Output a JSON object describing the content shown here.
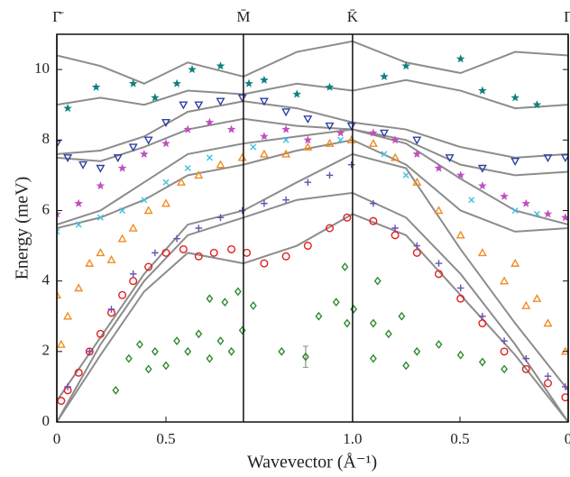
{
  "chart_data": {
    "type": "scatter",
    "xlabel": "Wavevector (Å⁻¹)",
    "ylabel": "Energy (meV)",
    "xlim": [
      0,
      2.343
    ],
    "ylim": [
      0,
      11
    ],
    "xticks": [
      0,
      0.5,
      {
        "value": 1.355,
        "label": "1.0"
      },
      {
        "value": 1.847,
        "label": "0.5"
      },
      {
        "value": 2.343,
        "label": "0"
      }
    ],
    "yticks": [
      0,
      2,
      4,
      6,
      8,
      10
    ],
    "symmetry_points": [
      {
        "x": 0,
        "label": "Γ̄"
      },
      {
        "x": 0.855,
        "label": "M̄"
      },
      {
        "x": 1.355,
        "label": "K̄"
      },
      {
        "x": 2.343,
        "label": "Γ̄"
      }
    ],
    "curve_color": "#8c8c8c",
    "curve_x": [
      0,
      0.2,
      0.4,
      0.6,
      0.855,
      1.1,
      1.355,
      1.6,
      1.85,
      2.1,
      2.343
    ],
    "curves": [
      [
        0,
        1.9,
        3.7,
        4.8,
        4.5,
        5.0,
        5.9,
        5.3,
        3.6,
        1.9,
        0
      ],
      [
        0,
        2.2,
        4.0,
        5.3,
        5.8,
        6.3,
        6.5,
        5.8,
        4.2,
        2.2,
        0
      ],
      [
        0.6,
        2.4,
        4.2,
        5.6,
        6.0,
        6.8,
        7.6,
        7.2,
        4.9,
        2.8,
        0.9
      ],
      [
        5.5,
        5.8,
        6.3,
        7.0,
        7.3,
        7.7,
        8.0,
        7.3,
        6.0,
        5.4,
        5.5
      ],
      [
        5.6,
        6.0,
        6.8,
        7.6,
        7.9,
        8.1,
        8.3,
        7.9,
        6.9,
        6.0,
        5.6
      ],
      [
        7.5,
        7.4,
        7.8,
        8.3,
        8.6,
        8.4,
        8.3,
        8.0,
        7.3,
        7.0,
        7.1
      ],
      [
        7.6,
        7.7,
        8.1,
        8.8,
        9.1,
        8.9,
        8.5,
        8.3,
        7.8,
        7.5,
        7.6
      ],
      [
        9.0,
        9.2,
        9.0,
        9.4,
        9.3,
        9.6,
        9.4,
        9.7,
        9.4,
        8.9,
        9.0
      ],
      [
        10.4,
        10.1,
        9.6,
        10.2,
        9.8,
        10.5,
        10.8,
        10.2,
        9.9,
        10.5,
        10.4
      ]
    ],
    "series": [
      {
        "color": "#2e8b2e",
        "marker": "diamond",
        "x": [
          0.27,
          0.33,
          0.38,
          0.42,
          0.45,
          0.5,
          0.55,
          0.6,
          0.65,
          0.7,
          0.75,
          0.8,
          0.85,
          0.7,
          0.77,
          0.83,
          0.9,
          1.03,
          1.2,
          1.28,
          1.33,
          1.36,
          1.45,
          1.52,
          1.58,
          1.65,
          1.75,
          1.85,
          1.95,
          2.05,
          1.45,
          1.6,
          1.32,
          1.47
        ],
        "values": [
          0.9,
          1.8,
          2.2,
          1.5,
          2.0,
          1.6,
          2.3,
          2.0,
          2.5,
          1.8,
          2.3,
          2.0,
          2.6,
          3.5,
          3.4,
          3.7,
          3.3,
          2.0,
          3.0,
          3.4,
          2.8,
          3.2,
          2.8,
          2.5,
          3.0,
          2.0,
          2.2,
          1.9,
          1.7,
          1.5,
          1.8,
          1.6,
          4.4,
          4.0
        ]
      },
      {
        "color": "#e02020",
        "marker": "circle",
        "x": [
          0.02,
          0.05,
          0.1,
          0.15,
          0.2,
          0.25,
          0.3,
          0.35,
          0.42,
          0.5,
          0.58,
          0.65,
          0.72,
          0.8,
          0.87,
          0.95,
          1.05,
          1.15,
          1.25,
          1.33,
          1.45,
          1.55,
          1.65,
          1.75,
          1.85,
          1.95,
          2.05,
          2.15,
          2.25,
          2.33
        ],
        "values": [
          0.6,
          0.9,
          1.4,
          2.0,
          2.5,
          3.1,
          3.6,
          4.0,
          4.4,
          4.8,
          4.9,
          4.7,
          4.8,
          4.9,
          4.8,
          4.5,
          4.7,
          5.0,
          5.5,
          5.8,
          5.7,
          5.3,
          4.8,
          4.2,
          3.5,
          2.8,
          2.0,
          1.5,
          1.1,
          0.7
        ]
      },
      {
        "color": "#6a4fb0",
        "marker": "plus",
        "x": [
          0.05,
          0.15,
          0.25,
          0.35,
          0.45,
          0.55,
          0.65,
          0.75,
          0.85,
          0.95,
          1.05,
          1.15,
          1.25,
          1.35,
          1.45,
          1.55,
          1.65,
          1.75,
          1.85,
          1.95,
          2.05,
          2.15,
          2.25,
          2.33
        ],
        "values": [
          1.0,
          2.0,
          3.2,
          4.2,
          4.8,
          5.2,
          5.5,
          5.8,
          6.0,
          6.2,
          6.3,
          6.8,
          7.0,
          7.3,
          6.2,
          5.5,
          5.0,
          4.5,
          3.8,
          3.0,
          2.3,
          1.8,
          1.3,
          1.0
        ]
      },
      {
        "color": "#f08c20",
        "marker": "triangle",
        "x": [
          0.0,
          0.02,
          0.05,
          0.1,
          0.15,
          0.2,
          0.25,
          0.3,
          0.35,
          0.42,
          0.5,
          0.57,
          0.65,
          0.75,
          0.85,
          0.95,
          1.05,
          1.15,
          1.25,
          1.35,
          1.45,
          1.55,
          1.65,
          1.75,
          1.85,
          1.95,
          2.05,
          2.15,
          2.25,
          2.33,
          2.1,
          2.2
        ],
        "values": [
          3.6,
          2.2,
          3.0,
          3.8,
          4.5,
          4.8,
          4.6,
          5.2,
          5.5,
          6.0,
          6.2,
          6.8,
          7.0,
          7.3,
          7.5,
          7.6,
          7.6,
          7.8,
          7.9,
          8.0,
          7.9,
          7.5,
          6.8,
          6.0,
          5.3,
          4.8,
          4.0,
          3.3,
          2.8,
          2.0,
          4.5,
          3.5
        ]
      },
      {
        "color": "#40c0e0",
        "marker": "x",
        "x": [
          0.0,
          0.1,
          0.2,
          0.3,
          0.4,
          0.5,
          0.6,
          0.7,
          0.9,
          1.05,
          1.3,
          1.5,
          1.6,
          1.9,
          2.1,
          2.2
        ],
        "values": [
          5.4,
          5.6,
          5.8,
          6.0,
          6.3,
          6.8,
          7.2,
          7.5,
          7.8,
          8.0,
          8.0,
          7.6,
          7.0,
          6.3,
          6.0,
          5.9
        ]
      },
      {
        "color": "#c050c0",
        "marker": "star",
        "x": [
          0.0,
          0.1,
          0.2,
          0.3,
          0.4,
          0.5,
          0.6,
          0.7,
          0.8,
          0.95,
          1.05,
          1.15,
          1.3,
          1.45,
          1.55,
          1.65,
          1.75,
          1.85,
          1.95,
          2.05,
          2.15,
          2.25,
          2.33
        ],
        "values": [
          5.9,
          6.2,
          6.7,
          7.2,
          7.6,
          7.9,
          8.3,
          8.5,
          8.3,
          8.1,
          8.3,
          8.0,
          8.2,
          8.2,
          8.0,
          7.6,
          7.2,
          7.0,
          6.7,
          6.4,
          6.2,
          5.9,
          5.8
        ]
      },
      {
        "color": "#3040a0",
        "marker": "triangle-down",
        "x": [
          0.0,
          0.05,
          0.12,
          0.2,
          0.28,
          0.35,
          0.42,
          0.5,
          0.58,
          0.65,
          0.75,
          0.85,
          0.95,
          1.05,
          1.15,
          1.25,
          1.35,
          1.5,
          1.65,
          1.8,
          1.95,
          2.1,
          2.25,
          2.33
        ],
        "values": [
          7.9,
          7.5,
          7.3,
          7.2,
          7.5,
          7.8,
          8.0,
          8.5,
          9.0,
          9.0,
          9.1,
          9.2,
          9.1,
          8.8,
          8.6,
          8.4,
          8.4,
          8.2,
          8.0,
          7.5,
          7.2,
          7.4,
          7.5,
          7.5
        ]
      },
      {
        "color": "#108080",
        "marker": "star",
        "x": [
          0.05,
          0.18,
          0.35,
          0.45,
          0.55,
          0.62,
          0.75,
          0.88,
          0.95,
          1.1,
          1.25,
          1.5,
          1.6,
          1.85,
          1.95,
          2.1,
          2.2
        ],
        "values": [
          8.9,
          9.5,
          9.6,
          9.2,
          9.6,
          10.0,
          10.1,
          9.6,
          9.7,
          9.3,
          9.5,
          9.8,
          10.1,
          10.3,
          9.4,
          9.2,
          9.0
        ]
      }
    ],
    "error_point": {
      "x": 1.14,
      "y": 1.85,
      "error": 0.3,
      "color": "#2e8b2e",
      "bar_color": "#909090"
    }
  }
}
